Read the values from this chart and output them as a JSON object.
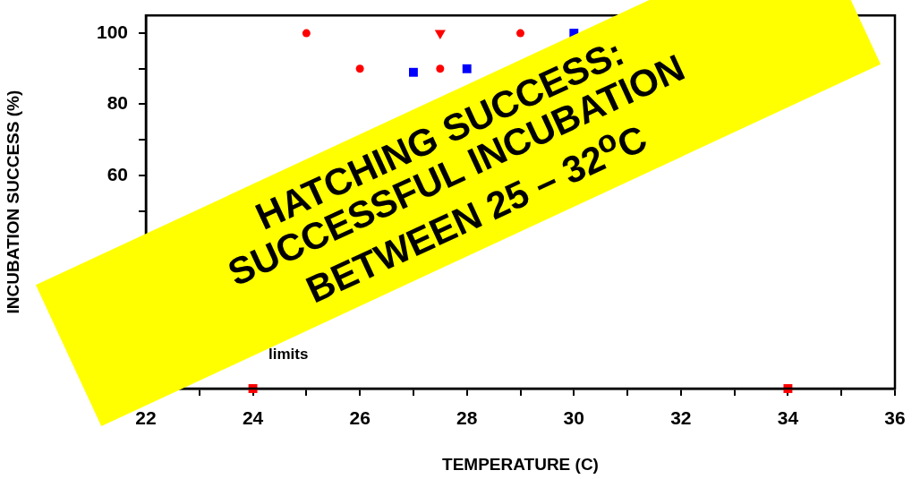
{
  "chart_data": {
    "type": "scatter",
    "xlabel": "TEMPERATURE (C)",
    "ylabel": "INCUBATION SUCCESS (%)",
    "xlim": [
      22,
      36
    ],
    "ylim": [
      0,
      105
    ],
    "xticks": [
      22,
      {
        "value": 23,
        "label": null
      },
      24,
      {
        "value": 25,
        "label": null
      },
      26,
      {
        "value": 27,
        "label": null
      },
      28,
      {
        "value": 29,
        "label": null
      },
      30,
      {
        "value": 31,
        "label": null
      },
      32,
      {
        "value": 33,
        "label": null
      },
      34,
      {
        "value": 35,
        "label": null
      },
      36
    ],
    "yticks": [
      {
        "value": 50,
        "label": null
      },
      60,
      {
        "value": 70,
        "label": null
      },
      80,
      {
        "value": 90,
        "label": null
      },
      100
    ],
    "grid": false,
    "legend": false,
    "series": [
      {
        "color": "#ff0000",
        "marker": "circle",
        "x": [
          25,
          26,
          27.5,
          29
        ],
        "values": [
          100,
          90,
          90,
          100
        ]
      },
      {
        "color": "#ff0000",
        "marker": "triangle",
        "x": [
          27.5
        ],
        "values": [
          100
        ]
      },
      {
        "color": "#0000ff",
        "marker": "square",
        "x": [
          27,
          28,
          30
        ],
        "values": [
          89,
          90,
          100
        ]
      },
      {
        "color": "#ff0000",
        "marker": "square",
        "x": [
          24,
          34
        ],
        "values": [
          0,
          0
        ]
      }
    ],
    "annotations": [
      "HATCHING SUCCESS:\nSUCCESSFUL INCUBATION\nBETWEEN 25 – 32$^{o}$C",
      "limits"
    ]
  }
}
